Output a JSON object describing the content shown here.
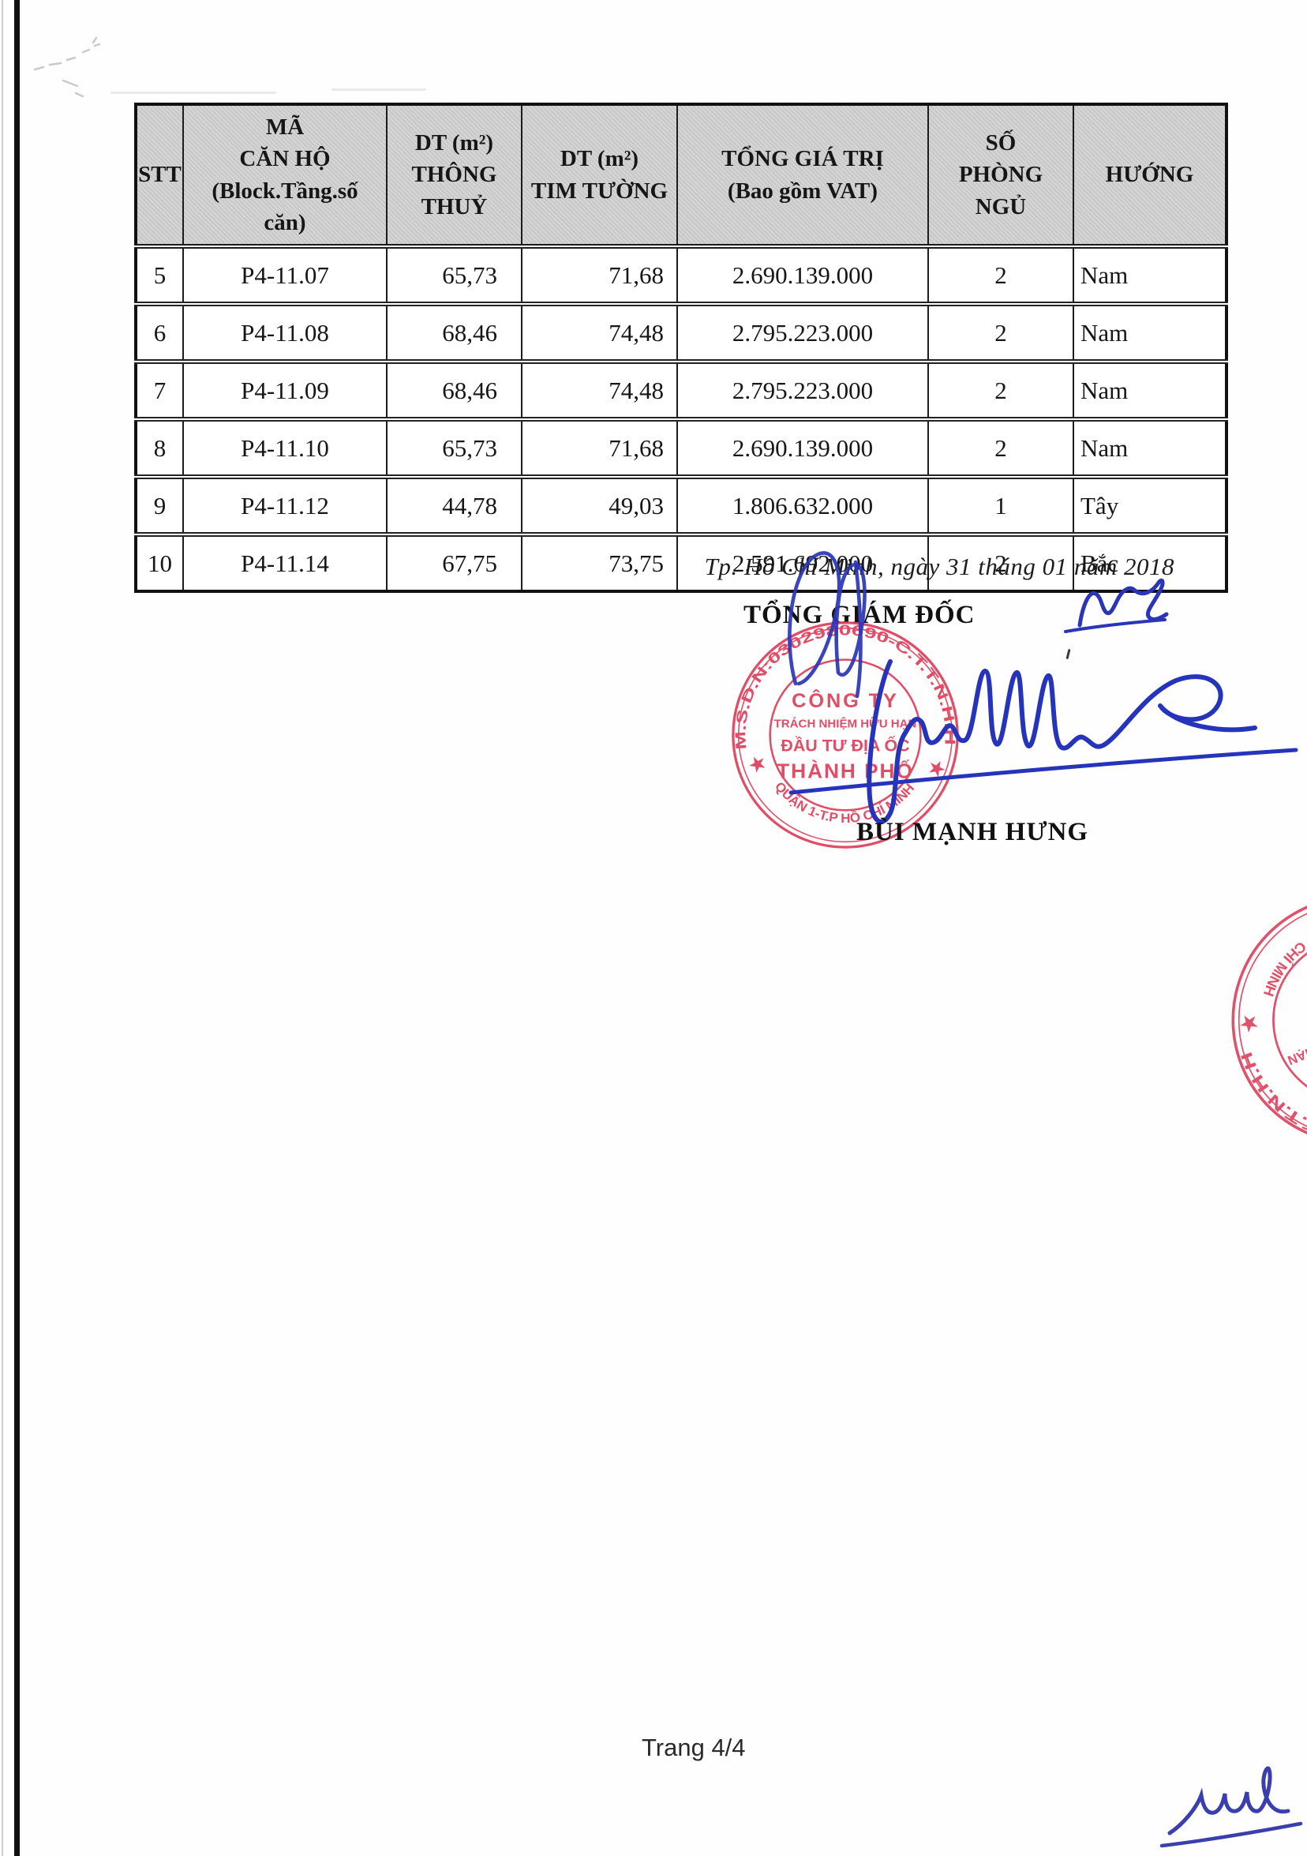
{
  "document": {
    "date_line": "Tp. Hồ Chí Minh, ngày 31 tháng 01 năm 2018",
    "signature_title": "TỔNG GIÁM ĐỐC",
    "signer_name": "BÙI MẠNH HƯNG",
    "page_footer": "Trang 4/4"
  },
  "table": {
    "headers": [
      "STT",
      "MÃ\nCĂN HỘ\n(Block.Tầng.số\ncăn)",
      "DT (m²)\nTHÔNG\nTHUỶ",
      "DT (m²)\nTIM TƯỜNG",
      "TỔNG GIÁ TRỊ\n(Bao gồm VAT)",
      "SỐ\nPHÒNG\nNGỦ",
      "HƯỚNG"
    ],
    "rows": [
      [
        "5",
        "P4-11.07",
        "65,73",
        "71,68",
        "2.690.139.000",
        "2",
        "Nam"
      ],
      [
        "6",
        "P4-11.08",
        "68,46",
        "74,48",
        "2.795.223.000",
        "2",
        "Nam"
      ],
      [
        "7",
        "P4-11.09",
        "68,46",
        "74,48",
        "2.795.223.000",
        "2",
        "Nam"
      ],
      [
        "8",
        "P4-11.10",
        "65,73",
        "71,68",
        "2.690.139.000",
        "2",
        "Nam"
      ],
      [
        "9",
        "P4-11.12",
        "44,78",
        "49,03",
        "1.806.632.000",
        "1",
        "Tây"
      ],
      [
        "10",
        "P4-11.14",
        "67,75",
        "73,75",
        "2.591.692.000",
        "2",
        "Bắc"
      ]
    ]
  },
  "stamp": {
    "ring_top": "M.S.D.N:0302980690-C.T.T.N.H.H",
    "ring_bottom": "QUẬN 1-T.P HỒ CHÍ MINH",
    "star_left": "★",
    "star_right": "★",
    "line1": "CÔNG TY",
    "line2": "TRÁCH NHIỆM HỮU HẠN",
    "line3": "ĐẦU TƯ ĐỊA ỐC",
    "line4": "THÀNH PHỐ",
    "color": "#dc3a57"
  },
  "colors": {
    "ink_blue": "#2a35b8",
    "stamp_red": "#dc3a57",
    "header_gray": "#d3d3d3"
  }
}
